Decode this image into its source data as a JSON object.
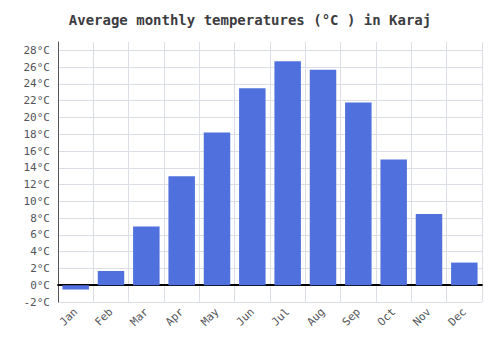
{
  "chart_data": {
    "type": "bar",
    "title": "Average monthly temperatures (°C ) in Karaj",
    "categories": [
      "Jan",
      "Feb",
      "Mar",
      "Apr",
      "May",
      "Jun",
      "Jul",
      "Aug",
      "Sep",
      "Oct",
      "Nov",
      "Dec"
    ],
    "values": [
      -0.5,
      1.7,
      7.0,
      13.0,
      18.2,
      23.5,
      26.7,
      25.7,
      21.8,
      15.0,
      8.5,
      2.7
    ],
    "ylim": [
      -2,
      29
    ],
    "yticks": [
      {
        "value": -2,
        "label": "-2°C"
      },
      {
        "value": 0,
        "label": "0°C"
      },
      {
        "value": 2,
        "label": "2°C"
      },
      {
        "value": 4,
        "label": "4°C"
      },
      {
        "value": 6,
        "label": "6°C"
      },
      {
        "value": 8,
        "label": "8°C"
      },
      {
        "value": 10,
        "label": "10°C"
      },
      {
        "value": 12,
        "label": "12°C"
      },
      {
        "value": 14,
        "label": "14°C"
      },
      {
        "value": 16,
        "label": "16°C"
      },
      {
        "value": 18,
        "label": "18°C"
      },
      {
        "value": 20,
        "label": "20°C"
      },
      {
        "value": 22,
        "label": "22°C"
      },
      {
        "value": 24,
        "label": "24°C"
      },
      {
        "value": 26,
        "label": "26°C"
      },
      {
        "value": 28,
        "label": "28°C"
      }
    ],
    "grid": true
  }
}
